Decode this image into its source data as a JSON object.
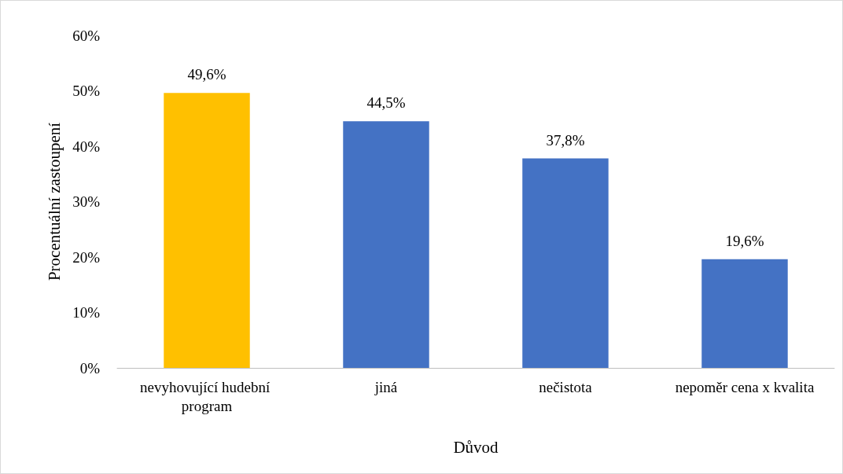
{
  "chart_data": {
    "type": "bar",
    "xlabel": "Důvod",
    "ylabel": "Procentuální zastoupení",
    "categories": [
      "nevyhovující hudební program",
      "jiná",
      "nečistota",
      "nepoměr cena x kvalita"
    ],
    "values": [
      49.6,
      44.5,
      37.8,
      19.6
    ],
    "colors": [
      "#ffc000",
      "#4472c4",
      "#4472c4",
      "#4472c4"
    ],
    "value_labels": [
      "49,6%",
      "44,5%",
      "37,8%",
      "19,6%"
    ],
    "ylim": [
      0,
      60
    ],
    "yticks": [
      {
        "value": 0,
        "label": "0%"
      },
      {
        "value": 10,
        "label": "10%"
      },
      {
        "value": 20,
        "label": "20%"
      },
      {
        "value": 30,
        "label": "30%"
      },
      {
        "value": 40,
        "label": "40%"
      },
      {
        "value": 50,
        "label": "50%"
      },
      {
        "value": 60,
        "label": "60%"
      }
    ],
    "grid": false
  }
}
